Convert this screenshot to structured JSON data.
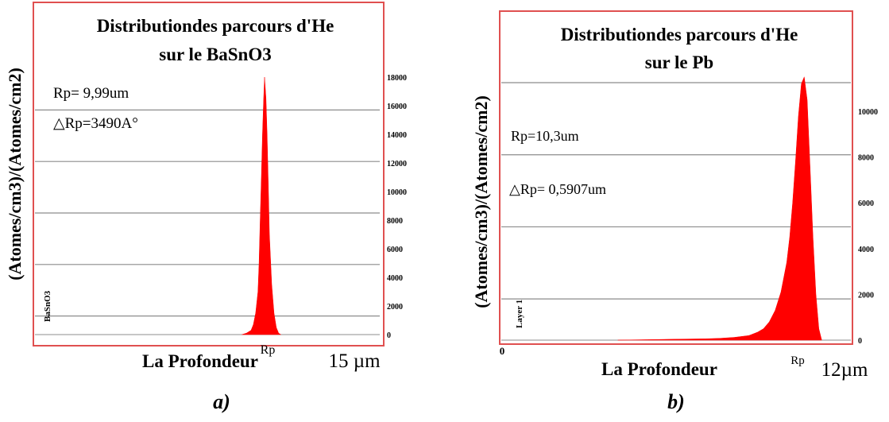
{
  "chart_data": [
    {
      "panel": "a)",
      "type": "area",
      "title": "Distributiondes parcours d'He sur le BaSnO3",
      "title_lines": [
        "Distributiondes parcours d'He",
        "sur le BaSnO3"
      ],
      "ylabel": "(Atomes/cm3)/(Atomes/cm2)",
      "xlabel": "La Profondeur",
      "x_end_label": "15 µm",
      "x_marker_label": "Rp",
      "legend_label": "BaSnO3",
      "annotations": [
        "Rp= 9,99um",
        "△Rp=3490A°"
      ],
      "x_unit": "um",
      "xlim": [
        0,
        15
      ],
      "ylim": [
        0,
        18800
      ],
      "yticks": [
        0,
        2000,
        4000,
        6000,
        8000,
        10000,
        12000,
        14000,
        16000,
        18000
      ],
      "ytick_labels": [
        "0",
        "2000",
        "4000",
        "6000",
        "8000",
        "10000",
        "12000",
        "14000",
        "16000",
        "18000"
      ],
      "gridlines": [
        1300,
        4900,
        8500,
        12100,
        15700
      ],
      "color": "#ff0000",
      "series": [
        {
          "x": [
            9.0,
            9.2,
            9.4,
            9.5,
            9.6,
            9.7,
            9.75,
            9.8,
            9.85,
            9.9,
            9.95,
            9.99,
            10.05,
            10.1,
            10.15,
            10.2,
            10.3,
            10.4,
            10.5,
            10.6,
            10.7
          ],
          "y": [
            0,
            100,
            300,
            700,
            1500,
            3000,
            5000,
            8000,
            11000,
            14000,
            16500,
            18000,
            16500,
            14000,
            10500,
            7000,
            3500,
            1500,
            500,
            100,
            0
          ]
        }
      ]
    },
    {
      "panel": "b)",
      "type": "area",
      "title": "Distributiondes parcours d'He sur le Pb",
      "title_lines": [
        "Distributiondes parcours d'He",
        "sur le Pb"
      ],
      "ylabel": "(Atomes/cm3)/(Atomes/cm2)",
      "xlabel": "La Profondeur",
      "x_start_label": "0",
      "x_end_label": "12µm",
      "x_marker_label": "Rp",
      "legend_label": "Layer 1",
      "annotations": [
        "Rp=10,3um",
        "△Rp= 0,5907um"
      ],
      "x_unit": "um",
      "xlim": [
        0,
        12
      ],
      "ylim": [
        0,
        11800
      ],
      "yticks": [
        0,
        2000,
        4000,
        6000,
        8000,
        10000
      ],
      "ytick_labels": [
        "0",
        "2000",
        "4000",
        "6000",
        "8000",
        "10000"
      ],
      "gridlines": [
        1800,
        4950,
        8100,
        11250
      ],
      "color": "#ff0000",
      "series": [
        {
          "x": [
            4.0,
            5.0,
            6.0,
            7.0,
            7.5,
            8.0,
            8.5,
            8.8,
            9.0,
            9.2,
            9.4,
            9.6,
            9.8,
            9.9,
            10.0,
            10.1,
            10.2,
            10.3,
            10.4,
            10.5,
            10.6,
            10.7,
            10.8,
            10.9,
            11.0
          ],
          "y": [
            0,
            20,
            40,
            60,
            80,
            120,
            200,
            350,
            500,
            800,
            1300,
            2100,
            3400,
            4500,
            6000,
            7800,
            9800,
            11200,
            11500,
            10500,
            7500,
            4500,
            2000,
            500,
            0
          ]
        }
      ]
    }
  ],
  "captions": [
    "a)",
    "b)"
  ]
}
